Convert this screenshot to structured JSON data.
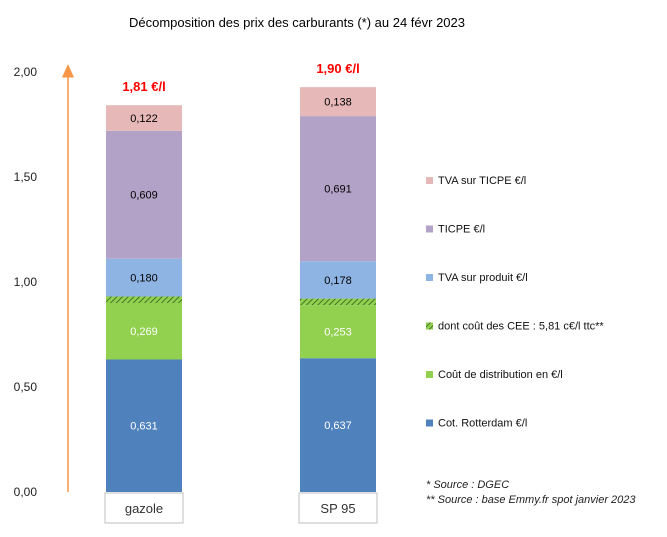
{
  "chart_data": {
    "type": "bar",
    "stacked": true,
    "title": "Décomposition des prix des carburants (*) au 24 févr 2023",
    "categories": [
      "gazole",
      "SP 95"
    ],
    "totals": [
      "1,81 €/l",
      "1,90 €/l"
    ],
    "ylim": [
      0,
      2
    ],
    "yticks": [
      "0,00",
      "0,50",
      "1,00",
      "1,50",
      "2,00"
    ],
    "series": [
      {
        "name": "Cot. Rotterdam €/l",
        "values": [
          0.631,
          0.637
        ],
        "labels": [
          "0,631",
          "0,637"
        ],
        "color": "#4f81bd",
        "label_color": "#ffffff"
      },
      {
        "name": "Coût de distribution en €/l",
        "values": [
          0.269,
          0.253
        ],
        "labels": [
          "0,269",
          "0,253"
        ],
        "color": "#92d050",
        "label_color": "#ffffff"
      },
      {
        "name": "dont coût des CEE : 5,81 c€/l ttc**",
        "values": [
          0.031,
          0.031
        ],
        "labels": [
          "",
          ""
        ],
        "color": "#76a83a",
        "pattern": "hatch",
        "label_color": "#000000"
      },
      {
        "name": "TVA sur produit €/l",
        "values": [
          0.18,
          0.178
        ],
        "labels": [
          "0,180",
          "0,178"
        ],
        "color": "#8eb4e3",
        "label_color": "#000000"
      },
      {
        "name": "TICPE €/l",
        "values": [
          0.609,
          0.691
        ],
        "labels": [
          "0,609",
          "0,691"
        ],
        "color": "#b3a2c7",
        "label_color": "#000000"
      },
      {
        "name": "TVA sur TICPE €/l",
        "values": [
          0.122,
          0.138
        ],
        "labels": [
          "0,122",
          "0,138"
        ],
        "color": "#e6b9b8",
        "label_color": "#000000"
      }
    ],
    "legend_order": [
      "TVA sur TICPE €/l",
      "TICPE €/l",
      "TVA sur produit €/l",
      "dont coût des CEE : 5,81 c€/l ttc**",
      "Coût de distribution en €/l",
      "Cot. Rotterdam €/l"
    ],
    "legend_placement": "right",
    "grid": false,
    "arrow_color": "#f79646",
    "notes": [
      "* Source : DGEC",
      "** Source : base Emmy.fr spot janvier 2023"
    ]
  }
}
